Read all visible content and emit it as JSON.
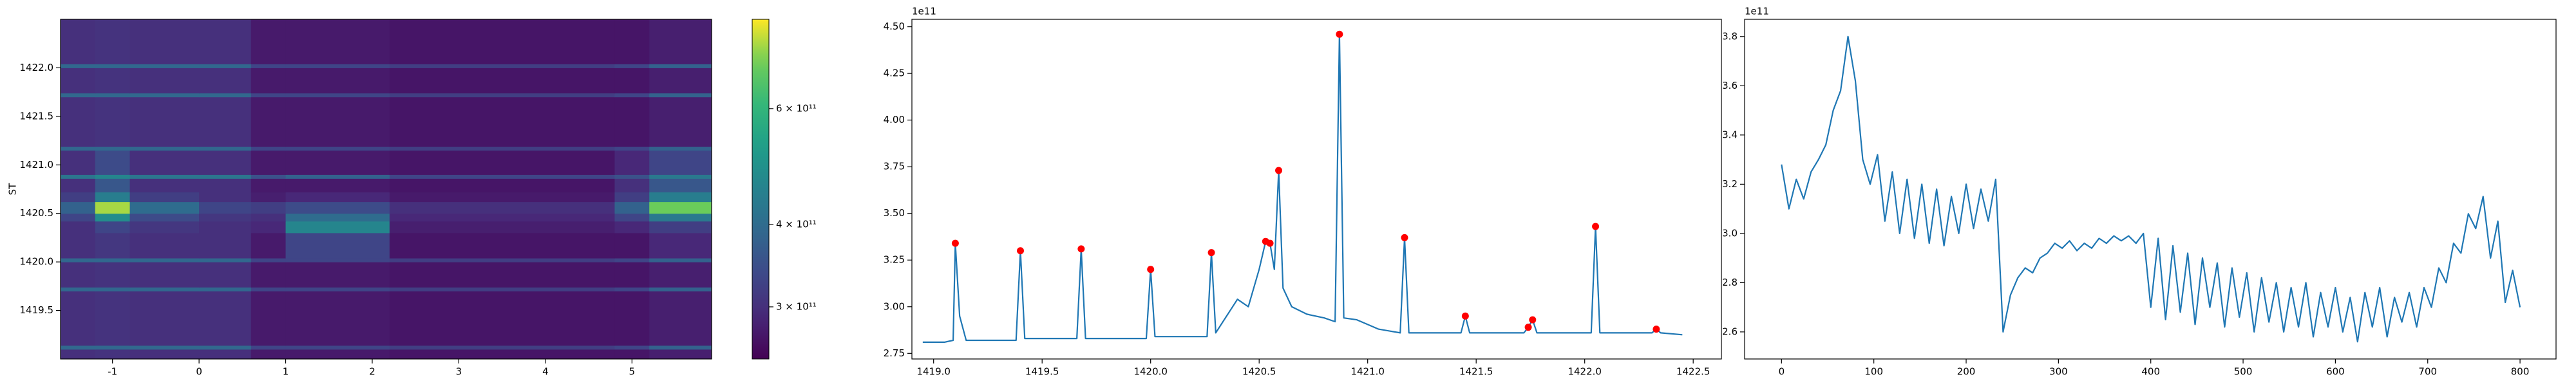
{
  "chart_data": [
    {
      "type": "heatmap",
      "ylabel": "ST",
      "colormap": "viridis",
      "log_color": true,
      "xlim": [
        -1.6,
        5.92
      ],
      "ylim": [
        1419.0,
        1422.5
      ],
      "xticks": [
        -1,
        0,
        1,
        2,
        3,
        4,
        5
      ],
      "yticks": [
        1419.5,
        {
          "value": 1420.0,
          "label": "1420.0"
        },
        1420.5,
        {
          "value": 1421.0,
          "label": "1421.0"
        },
        1421.5,
        {
          "value": 1422.0,
          "label": "1422.0"
        }
      ],
      "x_edges": [
        -1.6,
        -1.2,
        -0.8,
        0.0,
        0.6,
        1.0,
        2.2,
        4.8,
        5.2,
        5.92
      ],
      "y_edges": [
        1419.0,
        1419.1,
        1419.14,
        1419.7,
        1419.74,
        1420.0,
        1420.04,
        1420.3,
        1420.42,
        1420.5,
        1420.62,
        1420.72,
        1420.86,
        1420.9,
        1421.15,
        1421.19,
        1421.7,
        1421.74,
        1422.0,
        1422.04,
        1422.5
      ],
      "z": [
        [
          300000000000.0,
          305000000000.0,
          300000000000.0,
          300000000000.0,
          275000000000.0,
          275000000000.0,
          270000000000.0,
          270000000000.0,
          280000000000.0
        ],
        [
          390000000000.0,
          390000000000.0,
          390000000000.0,
          390000000000.0,
          330000000000.0,
          330000000000.0,
          320000000000.0,
          330000000000.0,
          380000000000.0
        ],
        [
          300000000000.0,
          305000000000.0,
          300000000000.0,
          300000000000.0,
          275000000000.0,
          275000000000.0,
          270000000000.0,
          270000000000.0,
          280000000000.0
        ],
        [
          390000000000.0,
          390000000000.0,
          390000000000.0,
          390000000000.0,
          330000000000.0,
          330000000000.0,
          320000000000.0,
          330000000000.0,
          380000000000.0
        ],
        [
          300000000000.0,
          305000000000.0,
          300000000000.0,
          300000000000.0,
          275000000000.0,
          275000000000.0,
          270000000000.0,
          270000000000.0,
          280000000000.0
        ],
        [
          390000000000.0,
          390000000000.0,
          390000000000.0,
          390000000000.0,
          330000000000.0,
          330000000000.0,
          320000000000.0,
          330000000000.0,
          380000000000.0
        ],
        [
          300000000000.0,
          310000000000.0,
          300000000000.0,
          300000000000.0,
          275000000000.0,
          330000000000.0,
          270000000000.0,
          270000000000.0,
          290000000000.0
        ],
        [
          300000000000.0,
          330000000000.0,
          310000000000.0,
          300000000000.0,
          290000000000.0,
          460000000000.0,
          280000000000.0,
          290000000000.0,
          320000000000.0
        ],
        [
          330000000000.0,
          480000000000.0,
          340000000000.0,
          310000000000.0,
          300000000000.0,
          400000000000.0,
          290000000000.0,
          330000000000.0,
          430000000000.0
        ],
        [
          380000000000.0,
          750000000000.0,
          400000000000.0,
          330000000000.0,
          320000000000.0,
          340000000000.0,
          300000000000.0,
          380000000000.0,
          700000000000.0
        ],
        [
          320000000000.0,
          440000000000.0,
          320000000000.0,
          300000000000.0,
          280000000000.0,
          290000000000.0,
          275000000000.0,
          320000000000.0,
          440000000000.0
        ],
        [
          300000000000.0,
          360000000000.0,
          300000000000.0,
          300000000000.0,
          275000000000.0,
          275000000000.0,
          270000000000.0,
          300000000000.0,
          360000000000.0
        ],
        [
          420000000000.0,
          460000000000.0,
          420000000000.0,
          420000000000.0,
          350000000000.0,
          380000000000.0,
          330000000000.0,
          350000000000.0,
          430000000000.0
        ],
        [
          300000000000.0,
          340000000000.0,
          300000000000.0,
          300000000000.0,
          275000000000.0,
          275000000000.0,
          270000000000.0,
          290000000000.0,
          330000000000.0
        ],
        [
          390000000000.0,
          390000000000.0,
          390000000000.0,
          390000000000.0,
          330000000000.0,
          330000000000.0,
          320000000000.0,
          330000000000.0,
          380000000000.0
        ],
        [
          300000000000.0,
          305000000000.0,
          300000000000.0,
          300000000000.0,
          275000000000.0,
          275000000000.0,
          270000000000.0,
          270000000000.0,
          280000000000.0
        ],
        [
          390000000000.0,
          390000000000.0,
          390000000000.0,
          390000000000.0,
          330000000000.0,
          330000000000.0,
          320000000000.0,
          330000000000.0,
          380000000000.0
        ],
        [
          300000000000.0,
          305000000000.0,
          300000000000.0,
          300000000000.0,
          275000000000.0,
          275000000000.0,
          270000000000.0,
          270000000000.0,
          280000000000.0
        ],
        [
          390000000000.0,
          390000000000.0,
          390000000000.0,
          390000000000.0,
          330000000000.0,
          330000000000.0,
          320000000000.0,
          330000000000.0,
          380000000000.0
        ],
        [
          300000000000.0,
          305000000000.0,
          300000000000.0,
          300000000000.0,
          275000000000.0,
          275000000000.0,
          270000000000.0,
          270000000000.0,
          280000000000.0
        ]
      ],
      "colorbar": {
        "clim": [
          250000000000.0,
          820000000000.0
        ],
        "ticks": [
          {
            "value": 300000000000.0,
            "label": "3 × 10¹¹"
          },
          {
            "value": 400000000000.0,
            "label": "4 × 10¹¹"
          },
          {
            "value": 600000000000.0,
            "label": "6 × 10¹¹"
          }
        ]
      }
    },
    {
      "type": "line",
      "offset": "1e11",
      "xlim": [
        1418.9,
        1422.63
      ],
      "ylim": [
        2.72,
        4.54
      ],
      "xticks": [
        {
          "value": 1419.0,
          "label": "1419.0"
        },
        1419.5,
        {
          "value": 1420.0,
          "label": "1420.0"
        },
        1420.5,
        {
          "value": 1421.0,
          "label": "1421.0"
        },
        1421.5,
        {
          "value": 1422.0,
          "label": "1422.0"
        },
        1422.5
      ],
      "yticks": [
        2.75,
        {
          "value": 3.0,
          "label": "3.00"
        },
        3.25,
        {
          "value": 3.5,
          "label": "3.50"
        },
        3.75,
        {
          "value": 4.0,
          "label": "4.00"
        },
        4.25,
        {
          "value": 4.5,
          "label": "4.50"
        }
      ],
      "x": [
        1418.95,
        1419.05,
        1419.09,
        1419.1,
        1419.12,
        1419.15,
        1419.38,
        1419.4,
        1419.42,
        1419.66,
        1419.68,
        1419.7,
        1419.98,
        1420.0,
        1420.02,
        1420.26,
        1420.28,
        1420.3,
        1420.35,
        1420.4,
        1420.45,
        1420.5,
        1420.53,
        1420.55,
        1420.57,
        1420.59,
        1420.61,
        1420.65,
        1420.72,
        1420.8,
        1420.85,
        1420.87,
        1420.89,
        1420.95,
        1421.05,
        1421.15,
        1421.17,
        1421.19,
        1421.43,
        1421.45,
        1421.47,
        1421.72,
        1421.74,
        1421.76,
        1421.78,
        1422.03,
        1422.05,
        1422.07,
        1422.31,
        1422.33,
        1422.35,
        1422.45
      ],
      "series": [
        {
          "color": "#1f77b4",
          "values": [
            2.81,
            2.81,
            2.82,
            3.34,
            2.95,
            2.82,
            2.82,
            3.3,
            2.83,
            2.83,
            3.31,
            2.83,
            2.83,
            3.2,
            2.84,
            2.84,
            3.29,
            2.86,
            2.95,
            3.04,
            3.0,
            3.2,
            3.35,
            3.34,
            3.2,
            3.73,
            3.1,
            3.0,
            2.96,
            2.94,
            2.92,
            4.46,
            2.94,
            2.93,
            2.88,
            2.86,
            3.37,
            2.86,
            2.86,
            2.95,
            2.86,
            2.86,
            2.89,
            2.93,
            2.86,
            2.86,
            3.43,
            2.86,
            2.86,
            2.88,
            2.86,
            2.85
          ]
        }
      ],
      "markers": {
        "color": "#ff0000",
        "x": [
          1419.1,
          1419.4,
          1419.68,
          1420.0,
          1420.28,
          1420.53,
          1420.55,
          1420.59,
          1420.87,
          1421.17,
          1421.45,
          1421.74,
          1421.76,
          1422.05,
          1422.33
        ],
        "values": [
          3.34,
          3.3,
          3.31,
          3.2,
          3.29,
          3.35,
          3.34,
          3.73,
          4.46,
          3.37,
          2.95,
          2.89,
          2.93,
          3.43,
          2.88
        ]
      }
    },
    {
      "type": "line",
      "offset": "1e11",
      "xlim": [
        -40,
        839
      ],
      "ylim": [
        2.49,
        3.87
      ],
      "xticks": [
        0,
        100,
        200,
        300,
        400,
        500,
        600,
        700,
        800
      ],
      "yticks": [
        2.6,
        2.8,
        {
          "value": 3.0,
          "label": "3.0"
        },
        3.2,
        3.4,
        3.6,
        3.8
      ],
      "x": [
        0,
        8,
        16,
        24,
        32,
        40,
        48,
        56,
        64,
        72,
        80,
        88,
        96,
        104,
        112,
        120,
        128,
        136,
        144,
        152,
        160,
        168,
        176,
        184,
        192,
        200,
        208,
        216,
        224,
        232,
        240,
        248,
        256,
        264,
        272,
        280,
        288,
        296,
        304,
        312,
        320,
        328,
        336,
        344,
        352,
        360,
        368,
        376,
        384,
        392,
        400,
        408,
        416,
        424,
        432,
        440,
        448,
        456,
        464,
        472,
        480,
        488,
        496,
        504,
        512,
        520,
        528,
        536,
        544,
        552,
        560,
        568,
        576,
        584,
        592,
        600,
        608,
        616,
        624,
        632,
        640,
        648,
        656,
        664,
        672,
        680,
        688,
        696,
        704,
        712,
        720,
        728,
        736,
        744,
        752,
        760,
        768,
        776,
        784,
        792,
        800
      ],
      "series": [
        {
          "color": "#1f77b4",
          "values": [
            3.28,
            3.1,
            3.22,
            3.14,
            3.25,
            3.3,
            3.36,
            3.5,
            3.58,
            3.8,
            3.62,
            3.3,
            3.2,
            3.32,
            3.05,
            3.25,
            3.0,
            3.22,
            2.98,
            3.2,
            2.96,
            3.18,
            2.95,
            3.15,
            3.0,
            3.2,
            3.02,
            3.18,
            3.05,
            3.22,
            2.6,
            2.75,
            2.82,
            2.86,
            2.84,
            2.9,
            2.92,
            2.96,
            2.94,
            2.97,
            2.93,
            2.96,
            2.94,
            2.98,
            2.96,
            2.99,
            2.97,
            2.99,
            2.96,
            3.0,
            2.7,
            2.98,
            2.65,
            2.95,
            2.68,
            2.92,
            2.63,
            2.9,
            2.7,
            2.88,
            2.62,
            2.86,
            2.66,
            2.84,
            2.6,
            2.82,
            2.64,
            2.8,
            2.6,
            2.78,
            2.62,
            2.8,
            2.58,
            2.76,
            2.62,
            2.78,
            2.6,
            2.74,
            2.56,
            2.76,
            2.62,
            2.78,
            2.58,
            2.74,
            2.64,
            2.76,
            2.62,
            2.78,
            2.7,
            2.86,
            2.8,
            2.96,
            2.92,
            3.08,
            3.02,
            3.15,
            2.9,
            3.05,
            2.72,
            2.85,
            2.7
          ]
        }
      ]
    }
  ]
}
